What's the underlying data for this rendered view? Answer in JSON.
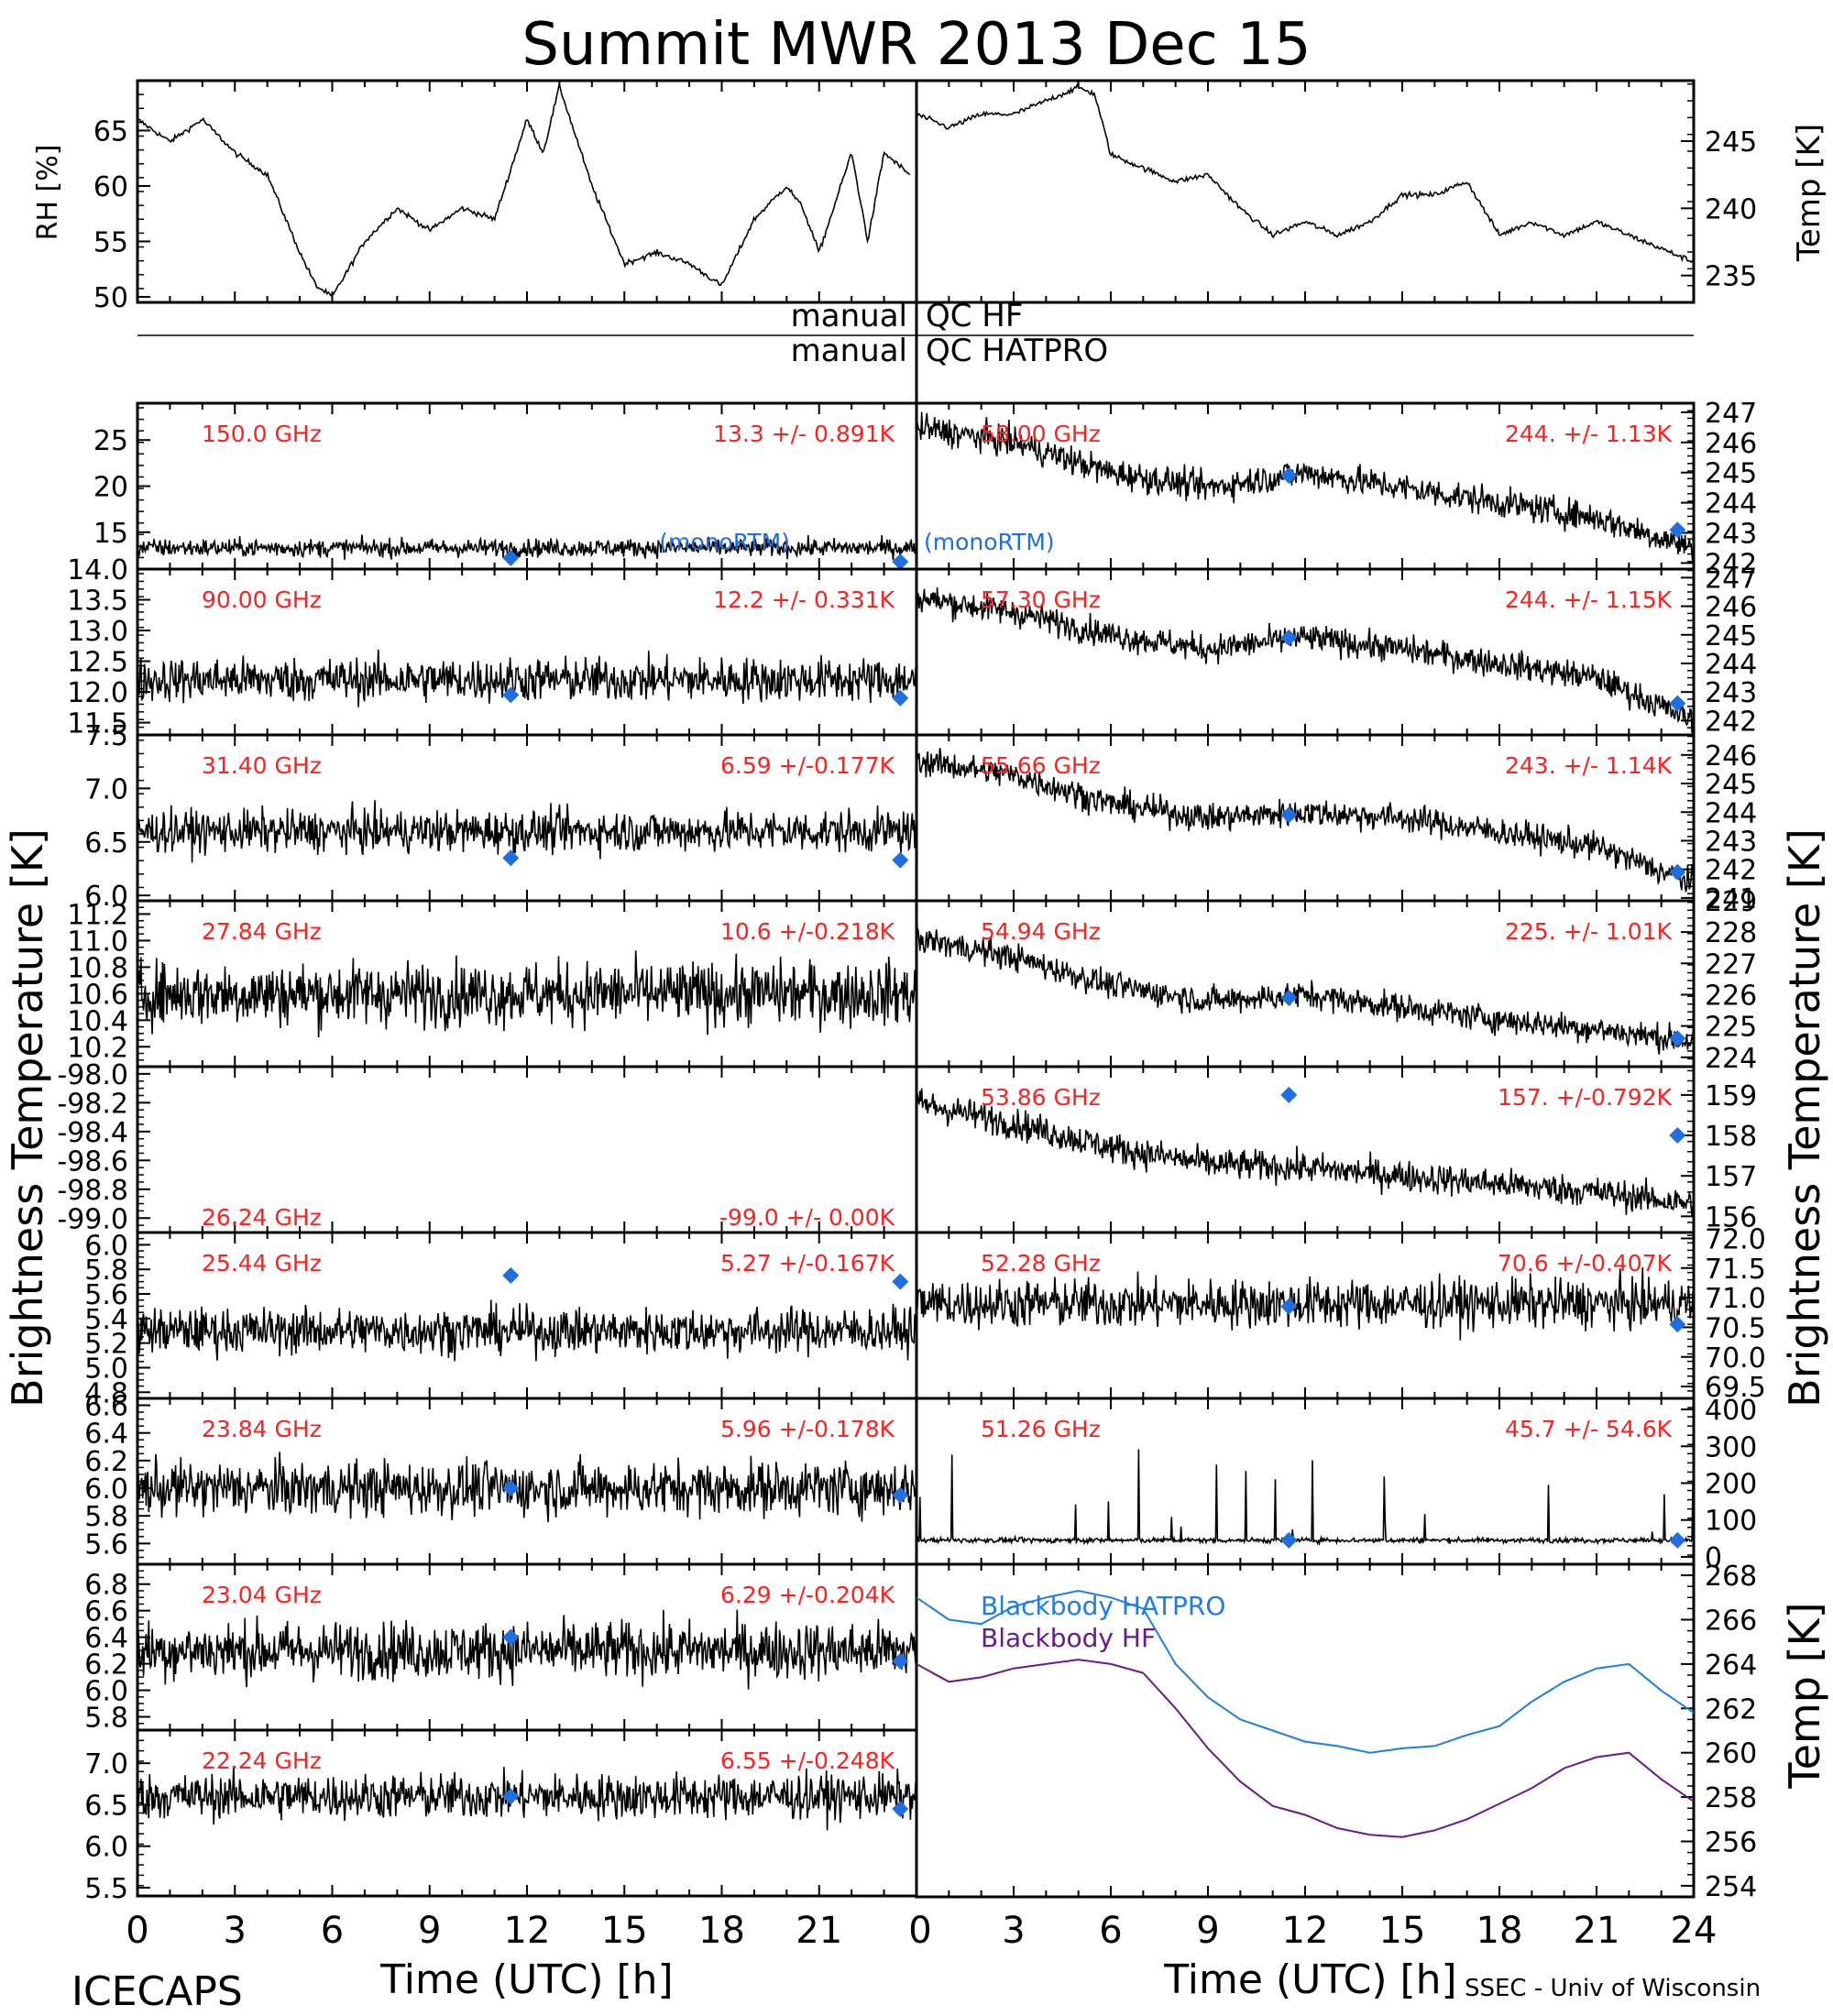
{
  "title": "Summit MWR 2013 Dec 15",
  "footer": {
    "left": "ICECAPS",
    "right": "SSEC - Univ of Wisconsin",
    "xlabel_left": "Time (UTC) [h]",
    "xlabel_right": "Time (UTC) [h]",
    "xticks_left": [
      "0",
      "3",
      "6",
      "9",
      "12",
      "15",
      "18",
      "21"
    ],
    "xticks_right": [
      "0",
      "3",
      "6",
      "9",
      "12",
      "15",
      "18",
      "21",
      "24"
    ]
  },
  "axis_labels": {
    "left_bt": "Brightness Temperature [K]",
    "right_bt": "Brightness Temperature [K]",
    "rh": "RH [%]",
    "temp_top": "Temp [K]",
    "temp_bottom": "Temp [K]"
  },
  "qc": {
    "hf_left": "manual",
    "hf_right": "QC HF",
    "hatpro_left": "manual",
    "hatpro_right": "QC HATPRO"
  },
  "legend": {
    "monortm": "(monoRTM)",
    "blackbody_hatpro": "Blackbody HATPRO",
    "blackbody_hf": "Blackbody HF"
  },
  "colors": {
    "annotation": "#ff2020",
    "model": "#1f6fe0",
    "hatpro": "#1e7ee6",
    "hf": "#6a1b8a",
    "data": "#000000"
  },
  "chart_data": [
    {
      "type": "line",
      "panel": "RH",
      "yticks": [
        "50",
        "55",
        "60",
        "65"
      ],
      "ylim": [
        49.5,
        69.5
      ],
      "xlim": [
        0,
        24
      ],
      "x": [
        0,
        1,
        2,
        3,
        3.5,
        4,
        5,
        5.5,
        6,
        7,
        8,
        9,
        9.5,
        10,
        11,
        12,
        12.5,
        13,
        14,
        15,
        16,
        17,
        18,
        19,
        20,
        20.5,
        21,
        22,
        22.5,
        23,
        23.8
      ],
      "values": [
        66,
        64,
        66,
        63,
        62,
        61,
        54,
        51,
        50,
        55,
        58,
        56,
        57,
        58,
        57,
        66,
        63,
        69,
        60,
        53,
        54,
        53,
        51,
        57,
        60,
        58,
        54,
        63,
        55,
        63,
        61
      ]
    },
    {
      "type": "line",
      "panel": "Temp",
      "yticks": [
        "235",
        "240",
        "245"
      ],
      "ylim": [
        233,
        249.5
      ],
      "xlim": [
        0,
        24
      ],
      "x": [
        0,
        1,
        2,
        3,
        4,
        5,
        5.5,
        6,
        7,
        8,
        9,
        10,
        11,
        12,
        13,
        14,
        15,
        16,
        17,
        18,
        19,
        20,
        21,
        22,
        23,
        24
      ],
      "values": [
        247,
        246,
        247,
        247,
        248,
        249,
        248.5,
        244,
        243,
        242,
        242.5,
        240,
        238,
        239,
        238,
        239,
        241,
        241,
        242,
        238,
        239,
        238,
        239,
        238,
        237,
        236
      ]
    },
    {
      "type": "scatter",
      "panel": "150.0 GHz",
      "label": "150.0 GHz",
      "stat": "13.3 +/- 0.891K",
      "yticks": [
        "15",
        "20",
        "25"
      ],
      "ylim": [
        11,
        29
      ],
      "base": 13.3,
      "noise": 0.9,
      "diamonds": [
        [
          11.5,
          12.2
        ],
        [
          23.5,
          11.8
        ]
      ]
    },
    {
      "type": "scatter",
      "panel": "90.00 GHz",
      "label": "90.00 GHz",
      "stat": "12.2 +/- 0.331K",
      "yticks": [
        "11.5",
        "12.0",
        "12.5",
        "13.0",
        "13.5",
        "14.0"
      ],
      "ylim": [
        11.3,
        14.0
      ],
      "base": 12.2,
      "noise": 0.33,
      "diamonds": [
        [
          11.5,
          11.95
        ],
        [
          23.5,
          11.9
        ]
      ]
    },
    {
      "type": "scatter",
      "panel": "31.40 GHz",
      "label": "31.40 GHz",
      "stat": "6.59 +/-0.177K",
      "yticks": [
        "6.0",
        "6.5",
        "7.0",
        "7.5"
      ],
      "ylim": [
        5.95,
        7.5
      ],
      "base": 6.6,
      "noise": 0.18,
      "diamonds": [
        [
          11.5,
          6.35
        ],
        [
          23.5,
          6.33
        ]
      ]
    },
    {
      "type": "scatter",
      "panel": "27.84 GHz",
      "label": "27.84 GHz",
      "stat": "10.6 +/-0.218K",
      "yticks": [
        "10.2",
        "10.4",
        "10.6",
        "10.8",
        "11.0",
        "11.2"
      ],
      "ylim": [
        10.05,
        11.3
      ],
      "base": 10.6,
      "noise": 0.22,
      "diamonds": []
    },
    {
      "type": "scatter",
      "panel": "26.24 GHz",
      "label": "26.24 GHz",
      "stat": "-99.0 +/- 0.00K",
      "yticks": [
        "-99.0",
        "-98.8",
        "-98.6",
        "-98.4",
        "-98.2",
        "-98.0"
      ],
      "ylim": [
        -99.1,
        -97.95
      ],
      "base": null,
      "noise": 0,
      "diamonds": []
    },
    {
      "type": "scatter",
      "panel": "25.44 GHz",
      "label": "25.44 GHz",
      "stat": "5.27 +/-0.167K",
      "yticks": [
        "4.8",
        "5.0",
        "5.2",
        "5.4",
        "5.6",
        "5.8",
        "6.0"
      ],
      "ylim": [
        4.75,
        6.1
      ],
      "base": 5.3,
      "noise": 0.17,
      "diamonds": [
        [
          11.5,
          5.75
        ],
        [
          23.5,
          5.7
        ]
      ]
    },
    {
      "type": "scatter",
      "panel": "23.84 GHz",
      "label": "23.84 GHz",
      "stat": "5.96 +/-0.178K",
      "yticks": [
        "5.6",
        "5.8",
        "6.0",
        "6.2",
        "6.4",
        "6.6"
      ],
      "ylim": [
        5.45,
        6.65
      ],
      "base": 6.0,
      "noise": 0.18,
      "diamonds": [
        [
          11.5,
          6.0
        ],
        [
          23.5,
          5.95
        ]
      ]
    },
    {
      "type": "scatter",
      "panel": "23.04 GHz",
      "label": "23.04 GHz",
      "stat": "6.29 +/-0.204K",
      "yticks": [
        "5.8",
        "6.0",
        "6.2",
        "6.4",
        "6.6",
        "6.8"
      ],
      "ylim": [
        5.7,
        6.95
      ],
      "base": 6.3,
      "noise": 0.2,
      "diamonds": [
        [
          11.5,
          6.4
        ],
        [
          23.5,
          6.22
        ]
      ]
    },
    {
      "type": "scatter",
      "panel": "22.24 GHz",
      "label": "22.24 GHz",
      "stat": "6.55 +/-0.248K",
      "yticks": [
        "5.5",
        "6.0",
        "6.5",
        "7.0"
      ],
      "ylim": [
        5.4,
        7.4
      ],
      "base": 6.6,
      "noise": 0.25,
      "diamonds": [
        [
          11.5,
          6.6
        ],
        [
          23.5,
          6.45
        ]
      ]
    },
    {
      "type": "scatter",
      "panel": "58.00 GHz",
      "label": "58.00 GHz",
      "stat": "244. +/- 1.13K",
      "yticks": [
        "242",
        "243",
        "244",
        "245",
        "246",
        "247"
      ],
      "ylim": [
        241.8,
        247.3
      ],
      "trend": [
        [
          0,
          246.5
        ],
        [
          3,
          246
        ],
        [
          6,
          245
        ],
        [
          9,
          244.5
        ],
        [
          12,
          245
        ],
        [
          15,
          244.5
        ],
        [
          18,
          244
        ],
        [
          21,
          243.5
        ],
        [
          24,
          242.5
        ]
      ],
      "noise": 0.45,
      "diamonds": [
        [
          11.5,
          244.9
        ],
        [
          23.5,
          243.1
        ]
      ]
    },
    {
      "type": "scatter",
      "panel": "57.30 GHz",
      "label": "57.30 GHz",
      "stat": "244. +/- 1.15K",
      "yticks": [
        "242",
        "243",
        "244",
        "245",
        "246",
        "247"
      ],
      "ylim": [
        241.5,
        247.3
      ],
      "trend": [
        [
          0,
          246.3
        ],
        [
          3,
          245.8
        ],
        [
          6,
          245
        ],
        [
          9,
          244.5
        ],
        [
          12,
          244.9
        ],
        [
          15,
          244.5
        ],
        [
          18,
          244
        ],
        [
          21,
          243.5
        ],
        [
          24,
          242
        ]
      ],
      "noise": 0.45,
      "diamonds": [
        [
          11.5,
          244.9
        ],
        [
          23.5,
          242.6
        ]
      ]
    },
    {
      "type": "scatter",
      "panel": "55.66 GHz",
      "label": "55.66 GHz",
      "stat": "243. +/- 1.14K",
      "yticks": [
        "241",
        "242",
        "243",
        "244",
        "245",
        "246"
      ],
      "ylim": [
        240.9,
        246.7
      ],
      "trend": [
        [
          0,
          245.8
        ],
        [
          3,
          245.3
        ],
        [
          6,
          244.3
        ],
        [
          9,
          243.8
        ],
        [
          12,
          244
        ],
        [
          15,
          243.8
        ],
        [
          18,
          243.3
        ],
        [
          21,
          242.8
        ],
        [
          24,
          241.5
        ]
      ],
      "noise": 0.45,
      "diamonds": [
        [
          11.5,
          243.9
        ],
        [
          23.5,
          241.9
        ]
      ]
    },
    {
      "type": "scatter",
      "panel": "54.94 GHz",
      "label": "54.94 GHz",
      "stat": "225. +/- 1.01K",
      "yticks": [
        "224",
        "225",
        "226",
        "227",
        "228",
        "229"
      ],
      "ylim": [
        223.7,
        229.0
      ],
      "trend": [
        [
          0,
          227.8
        ],
        [
          3,
          227.2
        ],
        [
          6,
          226.3
        ],
        [
          9,
          225.8
        ],
        [
          12,
          226
        ],
        [
          15,
          225.6
        ],
        [
          18,
          225.2
        ],
        [
          21,
          224.9
        ],
        [
          24,
          224.5
        ]
      ],
      "noise": 0.4,
      "diamonds": [
        [
          11.5,
          225.9
        ],
        [
          23.5,
          224.6
        ]
      ]
    },
    {
      "type": "scatter",
      "panel": "53.86 GHz",
      "label": "53.86 GHz",
      "stat": "157. +/-0.792K",
      "yticks": [
        "156",
        "157",
        "158",
        "159"
      ],
      "ylim": [
        155.6,
        159.7
      ],
      "trend": [
        [
          0,
          158.8
        ],
        [
          3,
          158.3
        ],
        [
          6,
          157.7
        ],
        [
          9,
          157.3
        ],
        [
          12,
          157.2
        ],
        [
          15,
          157
        ],
        [
          18,
          156.8
        ],
        [
          21,
          156.6
        ],
        [
          24,
          156.3
        ]
      ],
      "noise": 0.35,
      "diamonds": [
        [
          11.5,
          159.0
        ],
        [
          23.5,
          158.0
        ]
      ]
    },
    {
      "type": "scatter",
      "panel": "52.28 GHz",
      "label": "52.28 GHz",
      "stat": "70.6 +/-0.407K",
      "yticks": [
        "69.5",
        "70.0",
        "70.5",
        "71.0",
        "71.5",
        "72.0"
      ],
      "ylim": [
        69.3,
        72.1
      ],
      "base": 70.9,
      "noise": 0.38,
      "diamonds": [
        [
          11.5,
          70.85
        ],
        [
          23.5,
          70.55
        ]
      ]
    },
    {
      "type": "scatter",
      "panel": "51.26 GHz",
      "label": "51.26 GHz",
      "stat": "45.7 +/- 54.6K",
      "yticks": [
        "0",
        "100",
        "200",
        "300",
        "400"
      ],
      "ylim": [
        -20,
        430
      ],
      "base": 45,
      "noise": 6,
      "diamonds": [
        [
          11.5,
          45
        ],
        [
          23.5,
          45
        ]
      ]
    },
    {
      "type": "line",
      "panel": "Blackbody Temp",
      "yticks": [
        "254",
        "256",
        "258",
        "260",
        "262",
        "264",
        "266",
        "268"
      ],
      "ylim": [
        253.5,
        268.5
      ],
      "series": [
        {
          "name": "Blackbody HATPRO",
          "x": [
            0,
            1,
            2,
            3,
            4,
            5,
            6,
            7,
            8,
            9,
            10,
            11,
            12,
            13,
            14,
            15,
            16,
            17,
            18,
            19,
            20,
            21,
            22,
            23,
            24
          ],
          "values": [
            267,
            266,
            265.8,
            266.6,
            267,
            267.3,
            267,
            266.5,
            264,
            262.5,
            261.5,
            261,
            260.5,
            260.3,
            260,
            260.2,
            260.3,
            260.8,
            261.2,
            262.3,
            263.2,
            263.8,
            264,
            262.8,
            261.8
          ]
        },
        {
          "name": "Blackbody HF",
          "x": [
            0,
            1,
            2,
            3,
            4,
            5,
            6,
            7,
            8,
            9,
            10,
            11,
            12,
            13,
            14,
            15,
            16,
            17,
            18,
            19,
            20,
            21,
            22,
            23,
            24
          ],
          "values": [
            264,
            263.2,
            263.4,
            263.8,
            264,
            264.2,
            264,
            263.6,
            262,
            260.2,
            258.7,
            257.6,
            257.2,
            256.6,
            256.3,
            256.2,
            256.5,
            257,
            257.7,
            258.4,
            259.3,
            259.8,
            260,
            258.8,
            257.8
          ]
        }
      ]
    }
  ]
}
